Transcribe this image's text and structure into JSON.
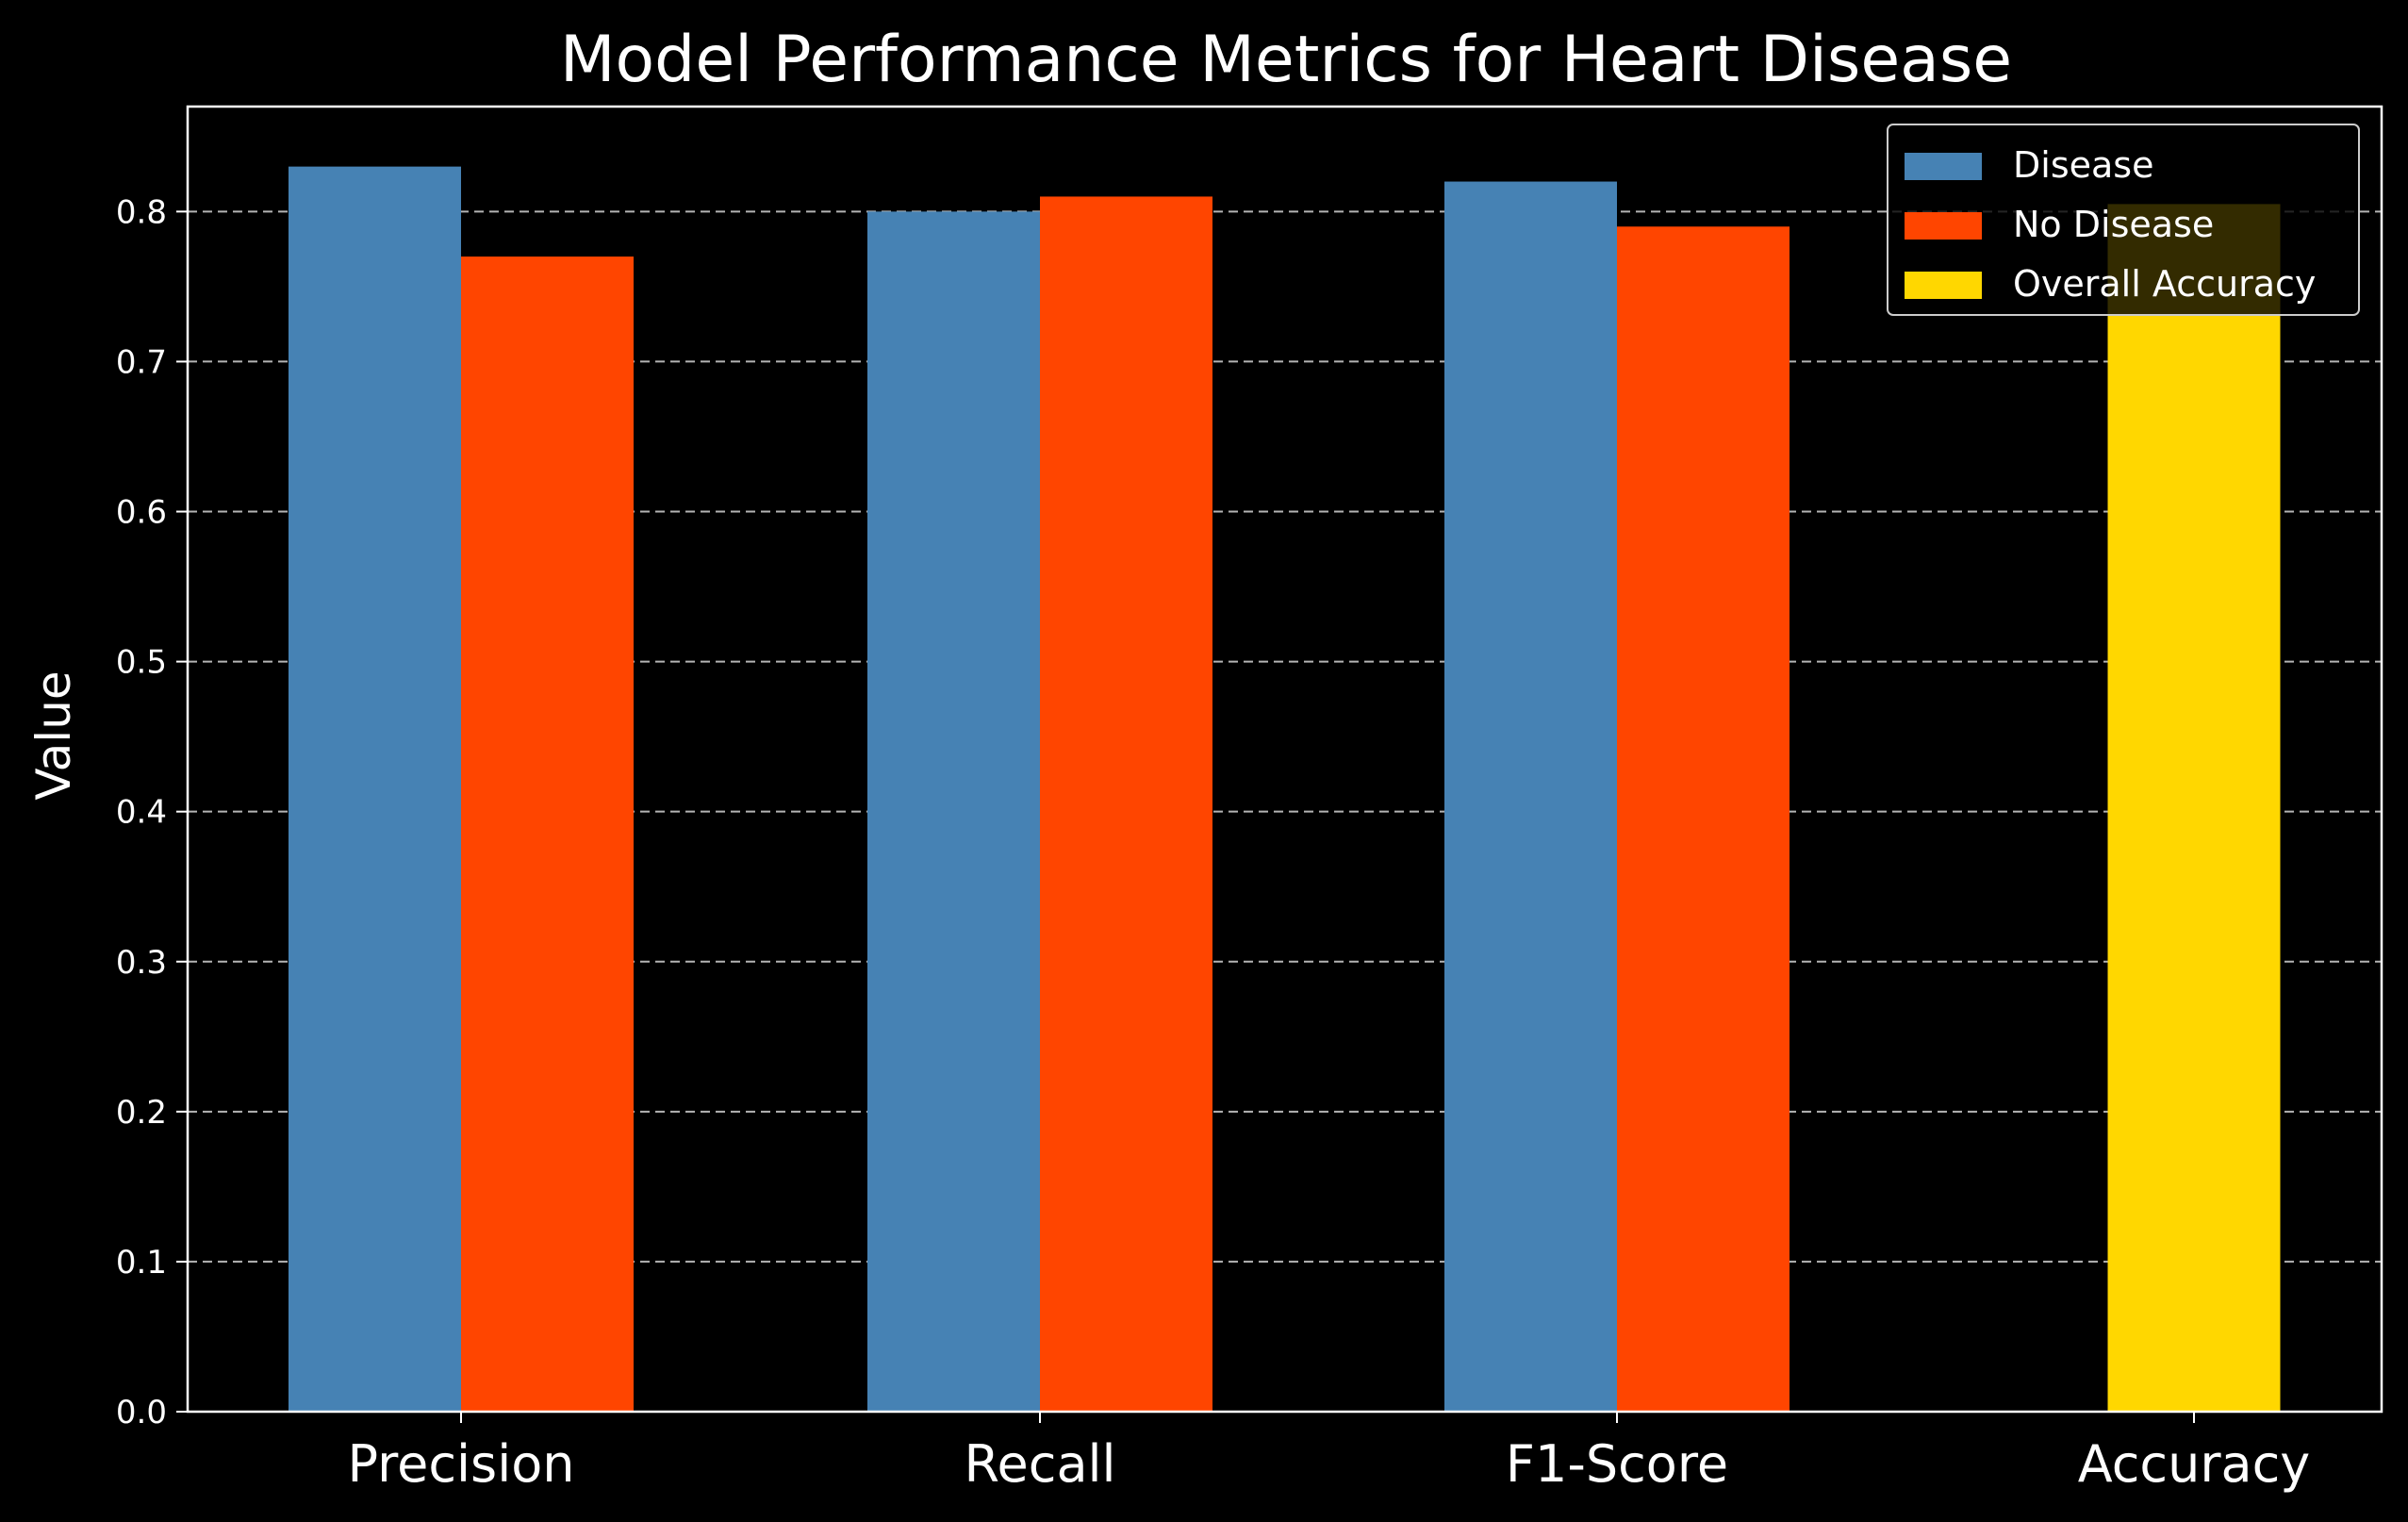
{
  "chart_data": {
    "type": "bar",
    "title": "Model Performance Metrics for Heart Disease",
    "xlabel": "",
    "ylabel": "Value",
    "categories": [
      "Precision",
      "Recall",
      "F1-Score",
      "Accuracy"
    ],
    "series": [
      {
        "name": "Disease",
        "color": "#4682b4",
        "values": [
          0.83,
          0.8,
          0.82,
          null
        ]
      },
      {
        "name": "No Disease",
        "color": "#ff4500",
        "values": [
          0.77,
          0.81,
          0.79,
          null
        ]
      },
      {
        "name": "Overall Accuracy",
        "color": "#ffd700",
        "values": [
          null,
          null,
          null,
          0.805
        ]
      }
    ],
    "ylim": [
      0,
      0.87
    ],
    "yticks": [
      "0.0",
      "0.1",
      "0.2",
      "0.3",
      "0.4",
      "0.5",
      "0.6",
      "0.7",
      "0.8"
    ],
    "grid": "y-dashed",
    "legend_position": "top-right",
    "background": "#000000",
    "foreground": "#ffffff"
  }
}
